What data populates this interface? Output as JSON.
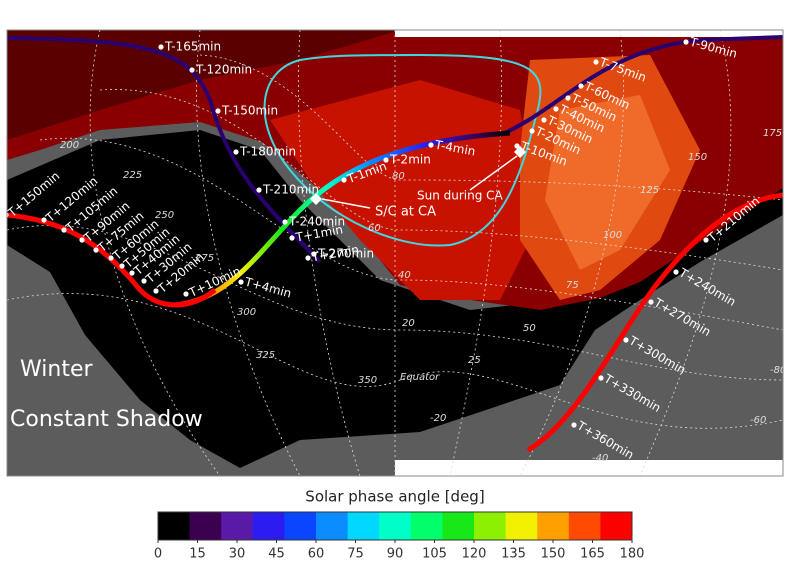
{
  "colorbar": {
    "title": "Solar phase angle [deg]",
    "ticks": [
      0,
      15,
      30,
      45,
      60,
      75,
      90,
      105,
      120,
      135,
      150,
      165,
      180
    ],
    "colors": [
      "#000000",
      "#3c0050",
      "#5a1aa8",
      "#2c1cf0",
      "#0a46ff",
      "#0a8cff",
      "#00d8ff",
      "#00ffc8",
      "#00ff6a",
      "#18e818",
      "#8cf000",
      "#f0f000",
      "#ffa000",
      "#ff4a00",
      "#ff0000"
    ]
  },
  "regions": {
    "winter": "Winter",
    "shadow": "Constant Shadow"
  },
  "annotations": {
    "sc": "S/C at CA",
    "sun": "Sun during CA",
    "equator": "Equator"
  },
  "trajectory_labels": [
    "T-165min",
    "T-120min",
    "T-150min",
    "T-180min",
    "T-210min",
    "T-240min",
    "T-270min",
    "T-1min",
    "T-2min",
    "T-4min",
    "T+1min",
    "T+2min",
    "T+4min",
    "T+10min",
    "T-90min",
    "T-75min",
    "T-60min",
    "T-50min",
    "T-40min",
    "T-30min",
    "T-20min",
    "T-10min",
    "T+150min",
    "T+120min",
    "T+105min",
    "T+90min",
    "T+75min",
    "T+60min",
    "T+50min",
    "T+40min",
    "T+30min",
    "T+20min",
    "T+210min",
    "T+240min",
    "T+270min",
    "T+300min",
    "T+330min",
    "T+360min"
  ],
  "grid_labels": [
    "200",
    "175",
    "150",
    "125",
    "100",
    "75",
    "50",
    "25",
    "225",
    "250",
    "275",
    "300",
    "325",
    "350",
    "80",
    "60",
    "40",
    "20",
    "-20",
    "-40",
    "-60",
    "-80"
  ]
}
